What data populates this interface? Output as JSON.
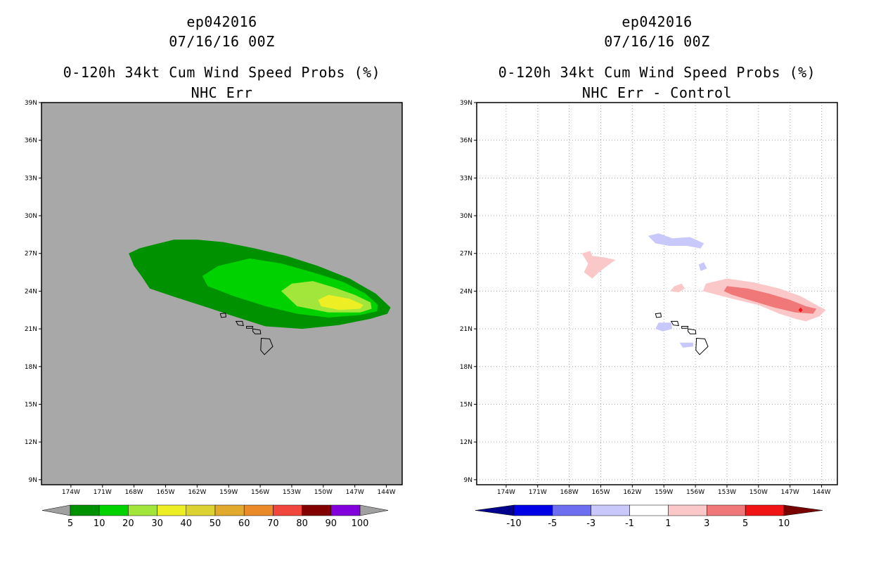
{
  "chart_data": [
    {
      "type": "heatmap",
      "storm_id": "ep042016",
      "datetime": "07/16/16 00Z",
      "title": "0-120h 34kt Cum Wind Speed Probs (%)",
      "subtitle": "NHC Err",
      "background": "#a8a8a8",
      "lat_ticks": [
        "39N",
        "36N",
        "33N",
        "30N",
        "27N",
        "24N",
        "21N",
        "18N",
        "15N",
        "12N",
        "9N"
      ],
      "lon_ticks": [
        "174W",
        "171W",
        "168W",
        "165W",
        "162W",
        "159W",
        "156W",
        "153W",
        "150W",
        "147W",
        "144W"
      ],
      "xlim": [
        -176.8,
        -142.5
      ],
      "ylim": [
        8.6,
        39
      ],
      "grid": false,
      "colorbar": {
        "labels": [
          "5",
          "10",
          "20",
          "30",
          "40",
          "50",
          "60",
          "70",
          "80",
          "90",
          "100"
        ],
        "colors": [
          "#009100",
          "#00d200",
          "#a2e63c",
          "#eeee24",
          "#dcd232",
          "#e1aa2d",
          "#eb8a28",
          "#f0463c",
          "#820000",
          "#8200dc"
        ],
        "end_colors": [
          "#a0a0a0",
          "#a0a0a0"
        ]
      },
      "contours": [
        {
          "level": 5,
          "color": "#009100",
          "points": [
            [
              -168.5,
              27.0
            ],
            [
              -167.5,
              27.4
            ],
            [
              -166.6,
              27.6
            ],
            [
              -164.2,
              28.1
            ],
            [
              -162.0,
              28.1
            ],
            [
              -159.5,
              27.9
            ],
            [
              -156.5,
              27.4
            ],
            [
              -153.5,
              26.8
            ],
            [
              -150.5,
              26.0
            ],
            [
              -147.5,
              25.0
            ],
            [
              -145.0,
              23.8
            ],
            [
              -143.6,
              22.7
            ],
            [
              -143.9,
              22.2
            ],
            [
              -145.5,
              21.8
            ],
            [
              -148.5,
              21.3
            ],
            [
              -152.0,
              21.0
            ],
            [
              -155.5,
              21.2
            ],
            [
              -158.5,
              22.0
            ],
            [
              -161.0,
              22.7
            ],
            [
              -164.0,
              23.5
            ],
            [
              -166.5,
              24.2
            ],
            [
              -167.3,
              25.2
            ],
            [
              -168.0,
              26.0
            ]
          ]
        },
        {
          "level": 10,
          "color": "#00d200",
          "points": [
            [
              -161.5,
              25.2
            ],
            [
              -160.0,
              26.0
            ],
            [
              -157.0,
              26.6
            ],
            [
              -154.0,
              26.2
            ],
            [
              -151.0,
              25.5
            ],
            [
              -148.0,
              24.7
            ],
            [
              -146.0,
              23.8
            ],
            [
              -144.8,
              22.9
            ],
            [
              -144.9,
              22.4
            ],
            [
              -146.5,
              22.1
            ],
            [
              -149.5,
              21.9
            ],
            [
              -152.5,
              22.2
            ],
            [
              -155.5,
              22.8
            ],
            [
              -158.5,
              23.6
            ],
            [
              -161.0,
              24.4
            ]
          ]
        },
        {
          "level": 20,
          "color": "#a2e63c",
          "points": [
            [
              -154.0,
              24.0
            ],
            [
              -153.0,
              24.6
            ],
            [
              -151.0,
              24.8
            ],
            [
              -149.0,
              24.3
            ],
            [
              -147.0,
              23.7
            ],
            [
              -145.5,
              23.1
            ],
            [
              -145.4,
              22.6
            ],
            [
              -146.5,
              22.3
            ],
            [
              -149.5,
              22.3
            ],
            [
              -152.5,
              22.8
            ]
          ]
        },
        {
          "level": 30,
          "color": "#eeee24",
          "points": [
            [
              -150.5,
              23.3
            ],
            [
              -149.5,
              23.7
            ],
            [
              -147.5,
              23.4
            ],
            [
              -146.2,
              22.9
            ],
            [
              -146.5,
              22.6
            ],
            [
              -148.5,
              22.5
            ],
            [
              -150.2,
              22.8
            ]
          ]
        }
      ]
    },
    {
      "type": "heatmap",
      "storm_id": "ep042016",
      "datetime": "07/16/16 00Z",
      "title": "0-120h 34kt Cum Wind Speed Probs (%)",
      "subtitle": "NHC Err - Control",
      "background": "#ffffff",
      "lat_ticks": [
        "39N",
        "36N",
        "33N",
        "30N",
        "27N",
        "24N",
        "21N",
        "18N",
        "15N",
        "12N",
        "9N"
      ],
      "lon_ticks": [
        "174W",
        "171W",
        "168W",
        "165W",
        "162W",
        "159W",
        "156W",
        "153W",
        "150W",
        "147W",
        "144W"
      ],
      "xlim": [
        -176.8,
        -142.5
      ],
      "ylim": [
        8.6,
        39
      ],
      "grid": true,
      "colorbar": {
        "labels": [
          "-10",
          "-5",
          "-3",
          "-1",
          "1",
          "3",
          "5",
          "10"
        ],
        "colors": [
          "#0000e6",
          "#6e6ef0",
          "#c8c8fa",
          "#ffffff",
          "#fac8c8",
          "#f07878",
          "#f01414"
        ],
        "end_colors": [
          "#00008c",
          "#780000"
        ]
      },
      "contours": [
        {
          "level": 1,
          "color": "#fac8c8",
          "points": [
            [
              -155.0,
              24.6
            ],
            [
              -153.0,
              25.0
            ],
            [
              -150.5,
              24.7
            ],
            [
              -148.0,
              24.2
            ],
            [
              -146.0,
              23.6
            ],
            [
              -144.5,
              22.9
            ],
            [
              -143.6,
              22.5
            ],
            [
              -144.2,
              22.0
            ],
            [
              -145.5,
              21.6
            ],
            [
              -146.5,
              21.8
            ],
            [
              -148.0,
              22.2
            ],
            [
              -150.0,
              22.9
            ],
            [
              -152.5,
              23.4
            ],
            [
              -155.3,
              24.0
            ]
          ]
        },
        {
          "level": 1,
          "color": "#fac8c8",
          "points": [
            [
              -166.8,
              27.0
            ],
            [
              -166.0,
              27.2
            ],
            [
              -165.8,
              26.8
            ],
            [
              -164.8,
              26.7
            ],
            [
              -163.6,
              26.5
            ],
            [
              -164.4,
              26.0
            ],
            [
              -165.2,
              25.5
            ],
            [
              -165.8,
              25.0
            ],
            [
              -166.6,
              25.5
            ],
            [
              -166.2,
              26.2
            ]
          ]
        },
        {
          "level": 1,
          "color": "#fac8c8",
          "points": [
            [
              -158.0,
              24.4
            ],
            [
              -157.3,
              24.6
            ],
            [
              -157.0,
              24.2
            ],
            [
              -157.6,
              23.9
            ],
            [
              -158.4,
              24.0
            ]
          ]
        },
        {
          "level": 3,
          "color": "#f07878",
          "points": [
            [
              -153.0,
              24.4
            ],
            [
              -151.0,
              24.2
            ],
            [
              -149.0,
              23.8
            ],
            [
              -147.0,
              23.3
            ],
            [
              -145.5,
              22.8
            ],
            [
              -144.5,
              22.6
            ],
            [
              -144.8,
              22.2
            ],
            [
              -146.5,
              22.3
            ],
            [
              -148.5,
              22.7
            ],
            [
              -150.5,
              23.2
            ],
            [
              -152.5,
              23.7
            ],
            [
              -153.3,
              24.0
            ]
          ]
        },
        {
          "level": 5,
          "color": "#f01414",
          "points": [
            [
              -146.0,
              22.7
            ],
            [
              -145.8,
              22.5
            ],
            [
              -146.0,
              22.3
            ],
            [
              -146.2,
              22.5
            ]
          ]
        },
        {
          "level": -1,
          "color": "#c8c8fa",
          "points": [
            [
              -160.5,
              28.4
            ],
            [
              -159.5,
              28.6
            ],
            [
              -158.2,
              28.2
            ],
            [
              -156.5,
              28.3
            ],
            [
              -155.2,
              27.8
            ],
            [
              -155.5,
              27.4
            ],
            [
              -156.8,
              27.6
            ],
            [
              -158.5,
              27.6
            ],
            [
              -159.8,
              27.8
            ]
          ]
        },
        {
          "level": -1,
          "color": "#c8c8fa",
          "points": [
            [
              -155.7,
              26.1
            ],
            [
              -155.2,
              26.3
            ],
            [
              -154.9,
              25.8
            ],
            [
              -155.5,
              25.6
            ]
          ]
        },
        {
          "level": -1,
          "color": "#c8c8fa",
          "points": [
            [
              -159.5,
              21.5
            ],
            [
              -158.3,
              21.5
            ],
            [
              -158.2,
              21.0
            ],
            [
              -159.1,
              20.8
            ],
            [
              -159.8,
              21.0
            ]
          ]
        },
        {
          "level": -1,
          "color": "#c8c8fa",
          "points": [
            [
              -157.5,
              19.9
            ],
            [
              -156.2,
              19.9
            ],
            [
              -156.2,
              19.6
            ],
            [
              -157.2,
              19.5
            ]
          ]
        }
      ]
    }
  ]
}
